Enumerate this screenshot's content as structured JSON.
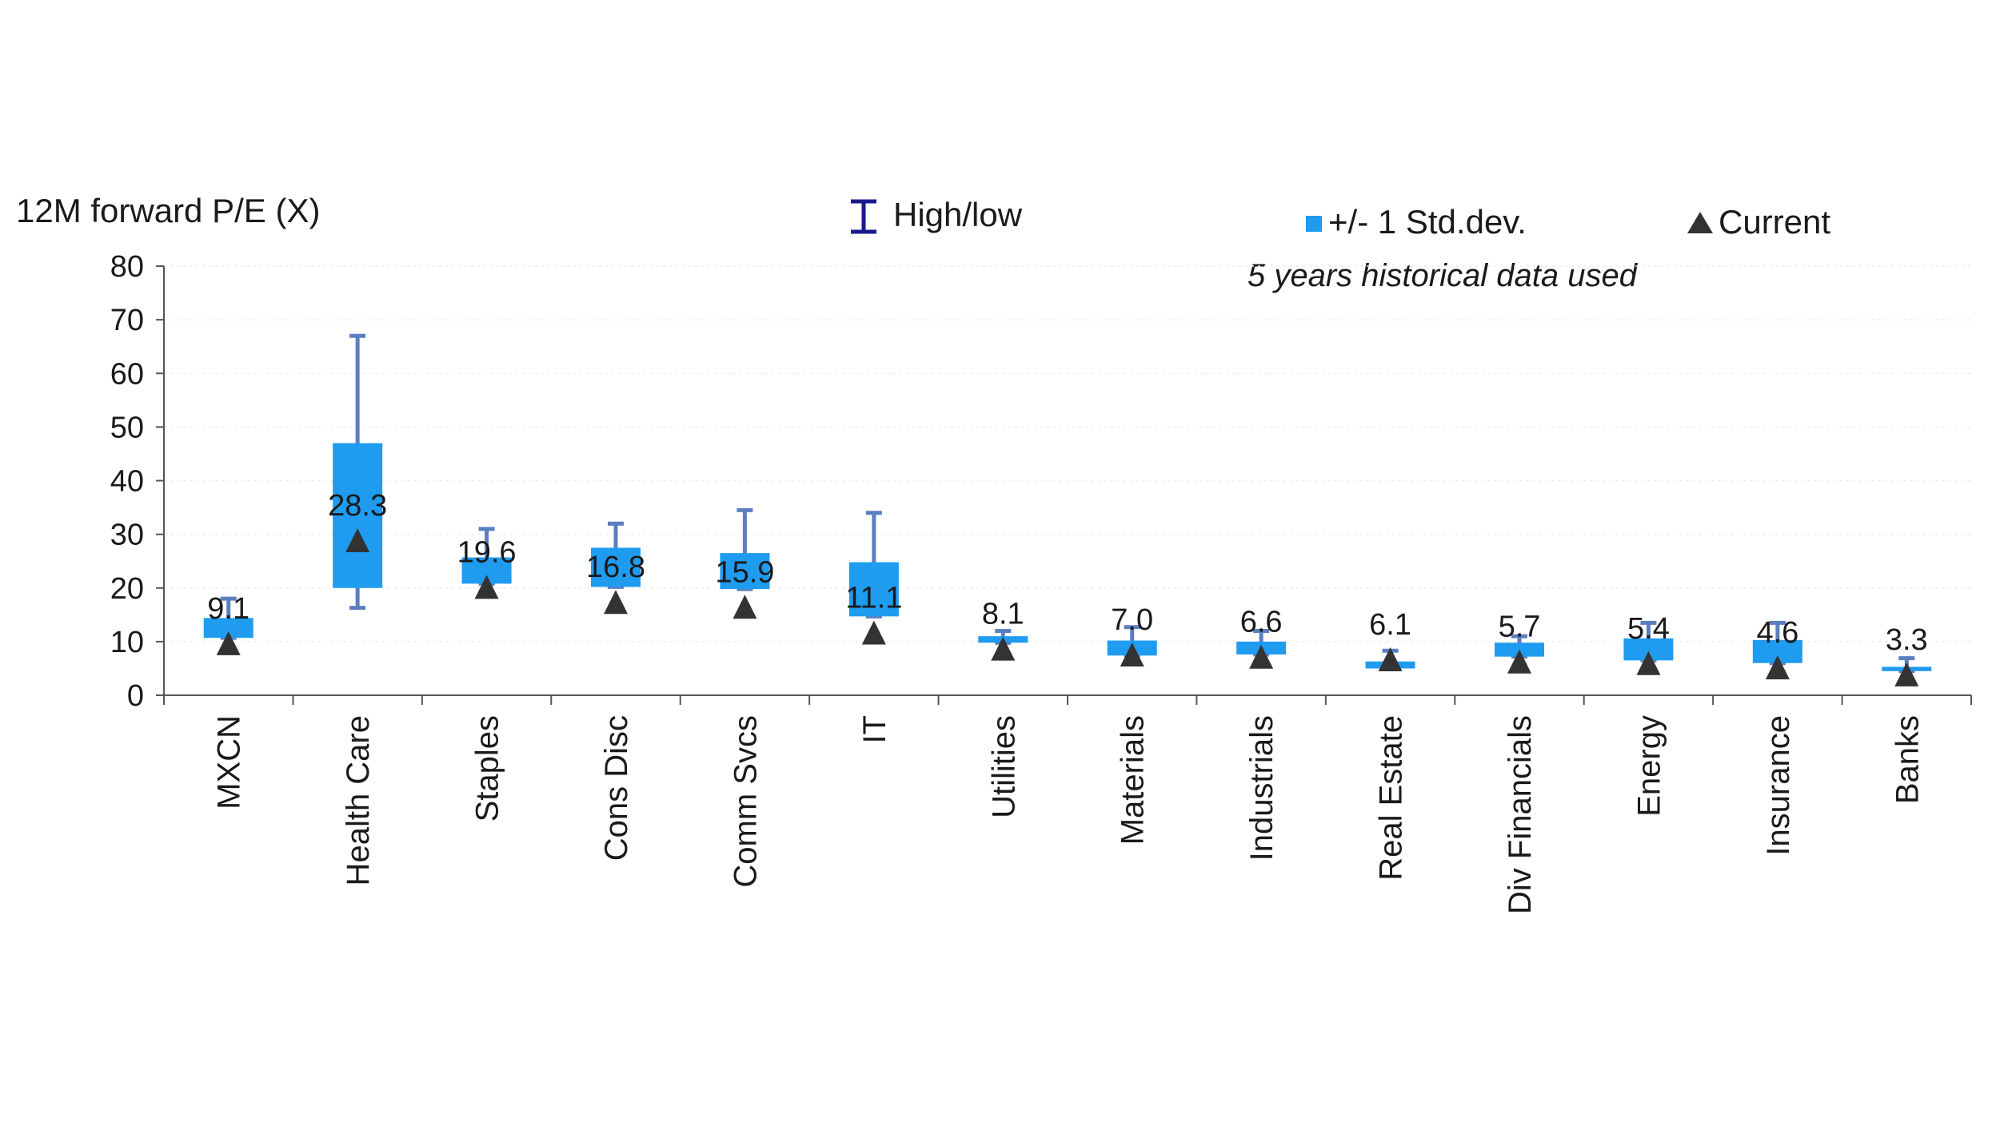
{
  "chart_data": {
    "type": "box",
    "ylabel": "12M forward P/E (X)",
    "ylim": [
      0,
      80
    ],
    "yticks": [
      0,
      10,
      20,
      30,
      40,
      50,
      60,
      70,
      80
    ],
    "note": "5 years historical data used",
    "legend": {
      "range": "High/low",
      "std": "+/- 1 Std.dev.",
      "current": "Current"
    },
    "colors": {
      "whisker": "#5b7fc0",
      "box": "#1f9bf0",
      "marker": "#333333",
      "range_legend": "#1a1a8c"
    },
    "categories": [
      "MXCN",
      "Health Care",
      "Staples",
      "Cons Disc",
      "Comm Svcs",
      "IT",
      "Utilities",
      "Materials",
      "Industrials",
      "Real Estate",
      "Div Financials",
      "Energy",
      "Insurance",
      "Banks"
    ],
    "current": [
      9.1,
      28.3,
      19.6,
      16.8,
      15.9,
      11.1,
      8.1,
      7.0,
      6.6,
      6.1,
      5.7,
      5.4,
      4.6,
      3.3
    ],
    "current_labels": [
      "9.1",
      "28.3",
      "19.6",
      "16.8",
      "15.9",
      "11.1",
      "8.1",
      "7.0",
      "6.6",
      "6.1",
      "5.7",
      "5.4",
      "4.6",
      "3.3"
    ],
    "std_low": [
      10.7,
      20.0,
      20.8,
      20.2,
      19.8,
      14.7,
      9.8,
      7.4,
      7.6,
      5.0,
      7.2,
      6.5,
      6.0,
      4.5
    ],
    "std_high": [
      14.4,
      47.0,
      25.7,
      27.5,
      26.5,
      24.8,
      11.0,
      10.2,
      10.0,
      6.3,
      9.8,
      10.6,
      10.3,
      5.3
    ],
    "low": [
      10.7,
      16.3,
      20.8,
      20.2,
      19.8,
      14.7,
      9.8,
      7.4,
      7.6,
      5.0,
      7.2,
      6.5,
      6.0,
      4.5
    ],
    "high": [
      18.0,
      67.0,
      31.0,
      32.0,
      34.5,
      34.0,
      12.0,
      12.7,
      12.0,
      8.3,
      11.0,
      13.5,
      13.5,
      6.9
    ]
  }
}
